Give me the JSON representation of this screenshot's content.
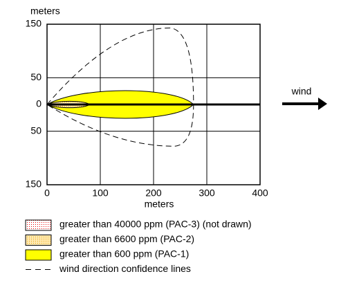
{
  "chart_data": {
    "type": "threat-zone",
    "y_axis_label": "meters",
    "x_axis_label": "meters",
    "wind_label": "wind",
    "xlim": [
      0,
      400
    ],
    "xticks": [
      0,
      100,
      200,
      300,
      400
    ],
    "ylim": [
      -150,
      150
    ],
    "yticks": [
      {
        "value": -150,
        "label": "150"
      },
      {
        "value": -50,
        "label": "50"
      },
      0,
      50,
      150
    ],
    "grid": true,
    "series": [
      {
        "name": "greater than 40000 ppm (PAC-3) (not drawn)",
        "color": "#ff0000"
      },
      {
        "name": "greater than 6600 ppm (PAC-2)",
        "color": "#ffa500",
        "reach": 80,
        "half_width": 6
      },
      {
        "name": "greater than 600 ppm (PAC-1)",
        "color": "#ffff00",
        "reach": 275,
        "half_width": 26
      }
    ],
    "confidence": {
      "name": "wind direction confidence lines",
      "reach": 275,
      "upper": 143,
      "lower": -78
    }
  }
}
